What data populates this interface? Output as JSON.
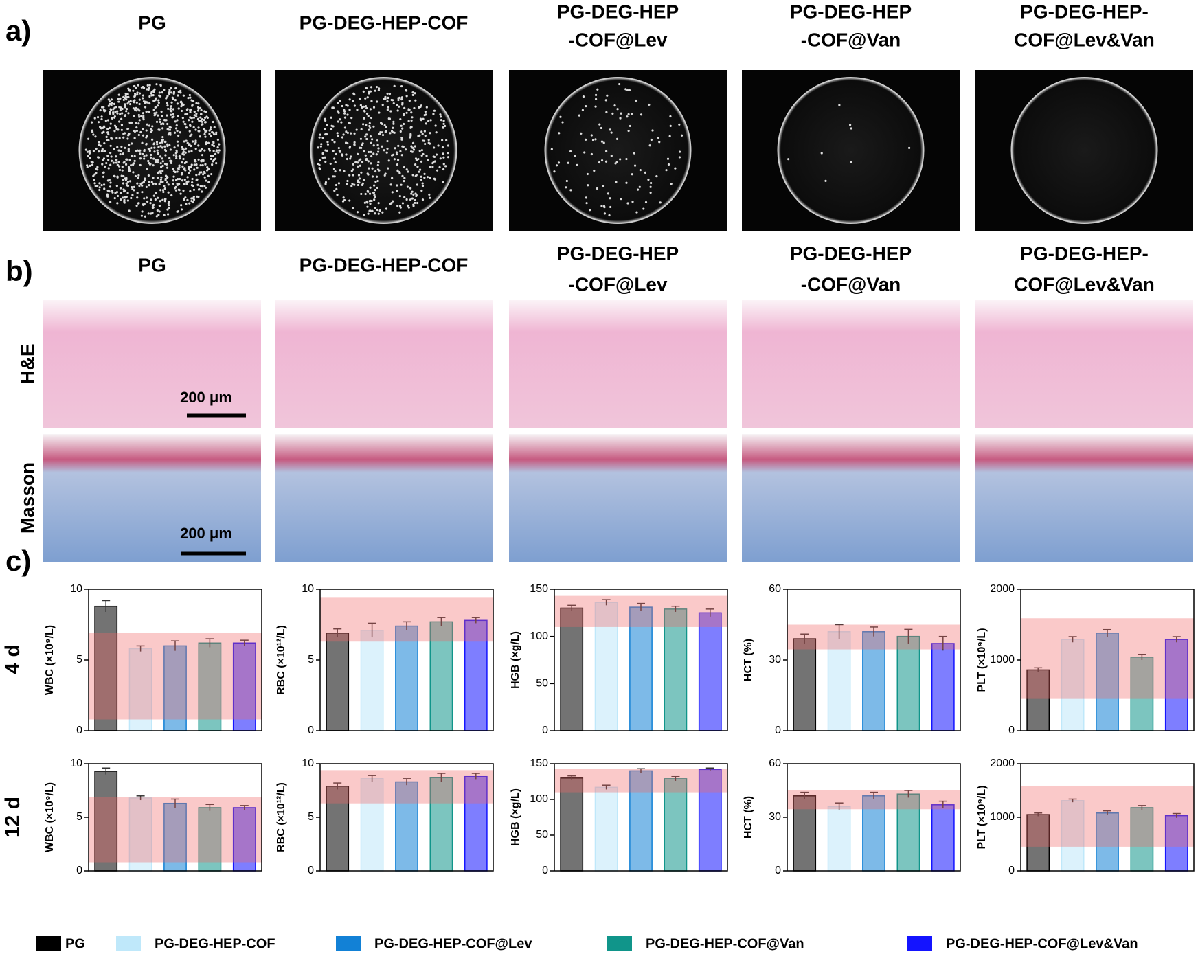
{
  "panel_labels": [
    "a)",
    "b)",
    "c)"
  ],
  "sample_titles": [
    [
      "PG"
    ],
    [
      "PG-DEG-HEP-COF"
    ],
    [
      "PG-DEG-HEP",
      "-COF@Lev"
    ],
    [
      "PG-DEG-HEP",
      "-COF@Van"
    ],
    [
      "PG-DEG-HEP-",
      "COF@Lev&Van"
    ]
  ],
  "stains": [
    "H&E",
    "Masson"
  ],
  "scale_bar": "200 μm",
  "row_labels": [
    "4 d",
    "12 d"
  ],
  "legend": [
    {
      "name": "PG",
      "color": "#000000"
    },
    {
      "name": "PG-DEG-HEP-COF",
      "color": "#bfe8fa"
    },
    {
      "name": "PG-DEG-HEP-COF@Lev",
      "color": "#1281d6"
    },
    {
      "name": "PG-DEG-HEP-COF@Van",
      "color": "#10958a"
    },
    {
      "name": "PG-DEG-HEP-COF@Lev&Van",
      "color": "#1414ff"
    }
  ],
  "chart_data": [
    {
      "type": "bar",
      "ylabel": "WBC (×10⁹/L)",
      "values": [
        8.8,
        5.8,
        6.0,
        6.2,
        6.2
      ],
      "errors": [
        0.4,
        0.2,
        0.35,
        0.3,
        0.2
      ],
      "ylim": [
        0,
        10
      ],
      "yticks": [
        0,
        5,
        10
      ],
      "reference_range": [
        0.8,
        6.9
      ]
    },
    {
      "type": "bar",
      "ylabel": "RBC (×10¹²/L)",
      "values": [
        6.9,
        7.1,
        7.4,
        7.7,
        7.8
      ],
      "errors": [
        0.3,
        0.5,
        0.3,
        0.3,
        0.2
      ],
      "ylim": [
        0,
        10
      ],
      "yticks": [
        0,
        5,
        10
      ],
      "reference_range": [
        6.3,
        9.4
      ]
    },
    {
      "type": "bar",
      "ylabel": "HGB (×g/L)",
      "values": [
        130,
        136,
        131,
        129,
        125
      ],
      "errors": [
        3,
        3,
        4,
        3,
        4
      ],
      "ylim": [
        0,
        150
      ],
      "yticks": [
        0,
        50,
        100,
        150
      ],
      "reference_range": [
        110,
        143
      ]
    },
    {
      "type": "bar",
      "ylabel": "HCT (%)",
      "values": [
        39,
        42,
        42,
        40,
        37
      ],
      "errors": [
        2,
        3,
        2,
        3,
        3
      ],
      "ylim": [
        0,
        60
      ],
      "yticks": [
        0,
        30,
        60
      ],
      "reference_range": [
        34.5,
        45
      ]
    },
    {
      "type": "bar",
      "ylabel": "PLT (×10⁹/L)",
      "values": [
        860,
        1290,
        1380,
        1040,
        1290
      ],
      "errors": [
        30,
        40,
        50,
        40,
        40
      ],
      "ylim": [
        0,
        2000
      ],
      "yticks": [
        0,
        1000,
        2000
      ],
      "reference_range": [
        450,
        1590
      ]
    },
    {
      "type": "bar",
      "ylabel": "WBC (×10⁹/L)",
      "values": [
        9.3,
        6.8,
        6.3,
        5.9,
        5.9
      ],
      "errors": [
        0.3,
        0.2,
        0.4,
        0.3,
        0.2
      ],
      "ylim": [
        0,
        10
      ],
      "yticks": [
        0,
        5,
        10
      ],
      "reference_range": [
        0.8,
        6.9
      ]
    },
    {
      "type": "bar",
      "ylabel": "RBC (×10¹²/L)",
      "values": [
        7.9,
        8.6,
        8.3,
        8.7,
        8.8
      ],
      "errors": [
        0.3,
        0.3,
        0.3,
        0.4,
        0.3
      ],
      "ylim": [
        0,
        10
      ],
      "yticks": [
        0,
        5,
        10
      ],
      "reference_range": [
        6.3,
        9.4
      ]
    },
    {
      "type": "bar",
      "ylabel": "HGB (×g/L)",
      "values": [
        130,
        117,
        140,
        129,
        142
      ],
      "errors": [
        3,
        3,
        3,
        3,
        2
      ],
      "ylim": [
        0,
        150
      ],
      "yticks": [
        0,
        50,
        100,
        150
      ],
      "reference_range": [
        110,
        143
      ]
    },
    {
      "type": "bar",
      "ylabel": "HCT (%)",
      "values": [
        42,
        36,
        42,
        43,
        37
      ],
      "errors": [
        2,
        2,
        2,
        2,
        2
      ],
      "ylim": [
        0,
        60
      ],
      "yticks": [
        0,
        30,
        60
      ],
      "reference_range": [
        34.5,
        45
      ]
    },
    {
      "type": "bar",
      "ylabel": "PLT (×10⁹/L)",
      "values": [
        1050,
        1310,
        1080,
        1180,
        1030
      ],
      "errors": [
        30,
        30,
        40,
        40,
        40
      ],
      "ylim": [
        0,
        2000
      ],
      "yticks": [
        0,
        1000,
        2000
      ],
      "reference_range": [
        450,
        1590
      ]
    }
  ]
}
